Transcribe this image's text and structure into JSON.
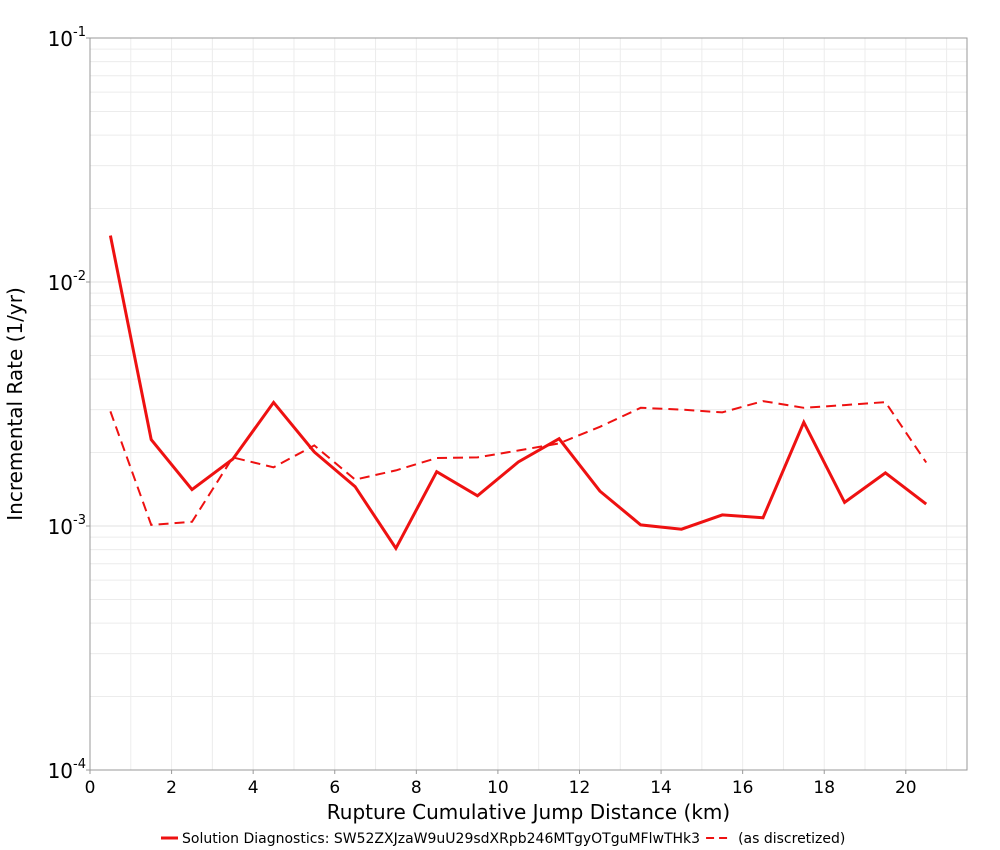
{
  "chart_data": {
    "type": "line",
    "title": "",
    "xlabel": "Rupture Cumulative Jump Distance (km)",
    "ylabel": "Incremental Rate (1/yr)",
    "xlim": [
      0,
      21.5
    ],
    "ylim": [
      0.0001,
      0.1
    ],
    "y_scale": "log",
    "grid": true,
    "x_ticks": [
      0,
      2,
      4,
      6,
      8,
      10,
      12,
      14,
      16,
      18,
      20
    ],
    "y_ticks": [
      {
        "value": 0.1,
        "base": "10",
        "exp": "-1"
      },
      {
        "value": 0.01,
        "base": "10",
        "exp": "-2"
      },
      {
        "value": 0.001,
        "base": "10",
        "exp": "-3"
      },
      {
        "value": 0.0001,
        "base": "10",
        "exp": "-4"
      }
    ],
    "legend_position": "bottom",
    "x": [
      0.5,
      1.5,
      2.5,
      3.5,
      4.5,
      5.5,
      6.5,
      7.5,
      8.5,
      9.5,
      10.5,
      11.5,
      12.5,
      13.5,
      14.5,
      15.5,
      16.5,
      17.5,
      18.5,
      19.5,
      20.5
    ],
    "series": [
      {
        "name": "Solution Diagnostics: SW52ZXJzaW9uU29sdXRpb246MTgyOTguMFlwTHk3",
        "style": "solid",
        "color": "#ee1111",
        "values": [
          0.0155,
          0.00226,
          0.00141,
          0.00188,
          0.00321,
          0.00201,
          0.00145,
          0.00081,
          0.00167,
          0.00133,
          0.00183,
          0.00228,
          0.00139,
          0.00101,
          0.00097,
          0.00111,
          0.00108,
          0.00266,
          0.00125,
          0.00165,
          0.00123
        ]
      },
      {
        "name": "(as discretized)",
        "style": "dashed",
        "color": "#ee1111",
        "values": [
          0.00295,
          0.00101,
          0.00104,
          0.00191,
          0.00174,
          0.00214,
          0.00155,
          0.00169,
          0.0019,
          0.00191,
          0.00204,
          0.00218,
          0.00255,
          0.00305,
          0.003,
          0.00292,
          0.00325,
          0.00305,
          0.00313,
          0.00322,
          0.00182
        ]
      }
    ]
  }
}
